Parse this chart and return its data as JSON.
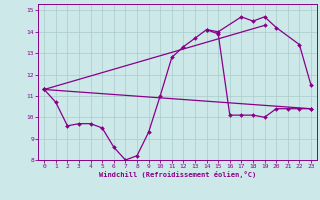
{
  "xlabel": "Windchill (Refroidissement éolien,°C)",
  "background_color": "#cce8e8",
  "grid_color": "#aacccc",
  "line_color": "#880088",
  "xlim": [
    -0.5,
    23.5
  ],
  "ylim": [
    8,
    15.3
  ],
  "yticks": [
    8,
    9,
    10,
    11,
    12,
    13,
    14,
    15
  ],
  "xticks": [
    0,
    1,
    2,
    3,
    4,
    5,
    6,
    7,
    8,
    9,
    10,
    11,
    12,
    13,
    14,
    15,
    16,
    17,
    18,
    19,
    20,
    21,
    22,
    23
  ],
  "series1": [
    11.3,
    10.7,
    9.6,
    9.7,
    9.7,
    9.5,
    8.6,
    8.0,
    8.2,
    9.3,
    11.0,
    12.8,
    13.3,
    13.7,
    14.1,
    13.9,
    10.1,
    10.1,
    10.1,
    10.0,
    10.4,
    10.4,
    10.4,
    10.4
  ],
  "series2_x": [
    0,
    19
  ],
  "series2_y": [
    11.3,
    14.3
  ],
  "series3_x": [
    14,
    15,
    17,
    18,
    19,
    20,
    22,
    23
  ],
  "series3_y": [
    14.1,
    14.0,
    14.7,
    14.5,
    14.7,
    14.2,
    13.4,
    11.5
  ],
  "series4_x": [
    0,
    23
  ],
  "series4_y": [
    11.3,
    10.4
  ]
}
